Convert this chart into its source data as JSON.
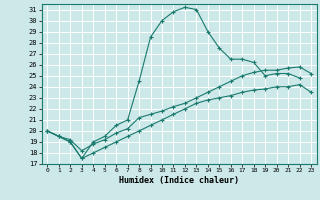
{
  "xlabel": "Humidex (Indice chaleur)",
  "background_color": "#cce8e8",
  "grid_color": "#ffffff",
  "line_color": "#1a7a6e",
  "xlim": [
    -0.5,
    23.5
  ],
  "ylim": [
    17,
    31.5
  ],
  "yticks": [
    17,
    18,
    19,
    20,
    21,
    22,
    23,
    24,
    25,
    26,
    27,
    28,
    29,
    30,
    31
  ],
  "xticks": [
    0,
    1,
    2,
    3,
    4,
    5,
    6,
    7,
    8,
    9,
    10,
    11,
    12,
    13,
    14,
    15,
    16,
    17,
    18,
    19,
    20,
    21,
    22,
    23
  ],
  "line1_x": [
    0,
    1,
    2,
    3,
    4,
    5,
    6,
    7,
    8,
    9,
    10,
    11,
    12,
    13,
    14,
    15,
    16,
    17,
    18,
    19,
    20,
    21,
    22
  ],
  "line1_y": [
    20.0,
    19.5,
    19.0,
    17.5,
    19.0,
    19.5,
    20.5,
    21.0,
    24.5,
    28.5,
    30.0,
    30.8,
    31.2,
    31.0,
    29.0,
    27.5,
    26.5,
    26.5,
    26.2,
    25.0,
    25.2,
    25.2,
    24.8
  ],
  "line2_x": [
    0,
    1,
    2,
    3,
    4,
    5,
    6,
    7,
    8,
    9,
    10,
    11,
    12,
    13,
    14,
    15,
    16,
    17,
    18,
    19,
    20,
    21,
    22,
    23
  ],
  "line2_y": [
    20.0,
    19.5,
    19.2,
    18.2,
    18.8,
    19.2,
    19.8,
    20.2,
    21.2,
    21.5,
    21.8,
    22.2,
    22.5,
    23.0,
    23.5,
    24.0,
    24.5,
    25.0,
    25.3,
    25.5,
    25.5,
    25.7,
    25.8,
    25.2
  ],
  "line3_x": [
    0,
    1,
    2,
    3,
    4,
    5,
    6,
    7,
    8,
    9,
    10,
    11,
    12,
    13,
    14,
    15,
    16,
    17,
    18,
    19,
    20,
    21,
    22,
    23
  ],
  "line3_y": [
    20.0,
    19.5,
    19.0,
    17.5,
    18.0,
    18.5,
    19.0,
    19.5,
    20.0,
    20.5,
    21.0,
    21.5,
    22.0,
    22.5,
    22.8,
    23.0,
    23.2,
    23.5,
    23.7,
    23.8,
    24.0,
    24.0,
    24.2,
    23.5
  ]
}
